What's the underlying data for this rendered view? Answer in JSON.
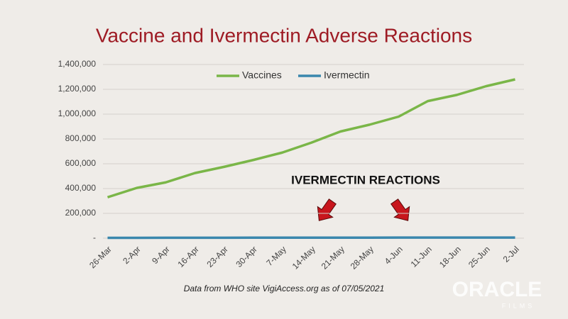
{
  "chart_data": {
    "type": "line",
    "title": "Vaccine and Ivermectin Adverse Reactions",
    "annotation": "IVERMECTIN REACTIONS",
    "footnote": "Data from WHO site VigiAccess.org as of 07/05/2021",
    "logo": "ORACLE",
    "logo_sub": "FILMS",
    "categories": [
      "26-Mar",
      "2-Apr",
      "9-Apr",
      "16-Apr",
      "23-Apr",
      "30-Apr",
      "7-May",
      "14-May",
      "21-May",
      "28-May",
      "4-Jun",
      "11-Jun",
      "18-Jun",
      "25-Jun",
      "2-Jul"
    ],
    "series": [
      {
        "name": "Vaccines",
        "color": "#7ab648",
        "values": [
          330000,
          405000,
          450000,
          525000,
          575000,
          630000,
          690000,
          770000,
          860000,
          915000,
          980000,
          1105000,
          1155000,
          1225000,
          1280000
        ]
      },
      {
        "name": "Ivermectin",
        "color": "#3a87ad",
        "values": [
          3000,
          3200,
          3400,
          3600,
          3800,
          4000,
          4200,
          4400,
          4500,
          4600,
          4700,
          4800,
          4900,
          5000,
          5100
        ]
      }
    ],
    "ylim": [
      0,
      1400000
    ],
    "yticks": [
      {
        "value": 0,
        "label": "-"
      },
      {
        "value": 200000,
        "label": "200,000"
      },
      {
        "value": 400000,
        "label": "400,000"
      },
      {
        "value": 600000,
        "label": "600,000"
      },
      {
        "value": 800000,
        "label": "800,000"
      },
      {
        "value": 1000000,
        "label": "1,000,000"
      },
      {
        "value": 1200000,
        "label": "1,200,000"
      },
      {
        "value": 1400000,
        "label": "1,400,000"
      }
    ],
    "grid": true,
    "legend": "top"
  }
}
